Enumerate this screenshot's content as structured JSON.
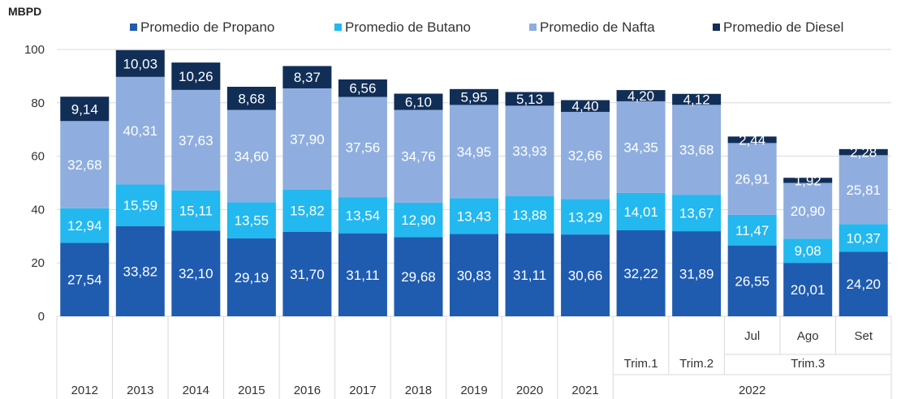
{
  "chart_data": {
    "type": "bar",
    "stacked": true,
    "ylabel": "MBPD",
    "ylim": [
      0,
      100
    ],
    "yticks": [
      0,
      20,
      40,
      60,
      80,
      100
    ],
    "grid": true,
    "legend_position": "top",
    "categories": [
      "2012",
      "2013",
      "2014",
      "2015",
      "2016",
      "2017",
      "2018",
      "2019",
      "2020",
      "2021",
      "Trim.1",
      "Trim.2",
      "Jul",
      "Ago",
      "Set"
    ],
    "group_labels": [
      {
        "label": "Trim.3",
        "from": 12,
        "to": 14,
        "level": 2
      },
      {
        "label": "2022",
        "from": 10,
        "to": 14,
        "level": 3
      }
    ],
    "series": [
      {
        "name": "Promedio de Propano",
        "color": "#1f5cb0",
        "values": [
          27.54,
          33.82,
          32.1,
          29.19,
          31.7,
          31.11,
          29.68,
          30.83,
          31.11,
          30.66,
          32.22,
          31.89,
          26.55,
          20.01,
          24.2
        ],
        "labels": [
          "27,54",
          "33,82",
          "32,10",
          "29,19",
          "31,70",
          "31,11",
          "29,68",
          "30,83",
          "31,11",
          "30,66",
          "32,22",
          "31,89",
          "26,55",
          "20,01",
          "24,20"
        ]
      },
      {
        "name": "Promedio de Butano",
        "color": "#23b8ef",
        "values": [
          12.94,
          15.59,
          15.11,
          13.55,
          15.82,
          13.54,
          12.9,
          13.43,
          13.88,
          13.29,
          14.01,
          13.67,
          11.47,
          9.08,
          10.37
        ],
        "labels": [
          "12,94",
          "15,59",
          "15,11",
          "13,55",
          "15,82",
          "13,54",
          "12,90",
          "13,43",
          "13,88",
          "13,29",
          "14,01",
          "13,67",
          "11,47",
          "9,08",
          "10,37"
        ]
      },
      {
        "name": "Promedio de Nafta",
        "color": "#8faedf",
        "values": [
          32.68,
          40.31,
          37.63,
          34.6,
          37.9,
          37.56,
          34.76,
          34.95,
          33.93,
          32.66,
          34.35,
          33.68,
          26.91,
          20.9,
          25.81
        ],
        "labels": [
          "32,68",
          "40,31",
          "37,63",
          "34,60",
          "37,90",
          "37,56",
          "34,76",
          "34,95",
          "33,93",
          "32,66",
          "34,35",
          "33,68",
          "26,91",
          "20,90",
          "25,81"
        ]
      },
      {
        "name": "Promedio de Diesel",
        "color": "#112e57",
        "values": [
          9.14,
          10.03,
          10.26,
          8.68,
          8.37,
          6.56,
          6.1,
          5.95,
          5.13,
          4.4,
          4.2,
          4.12,
          2.44,
          1.92,
          2.28
        ],
        "labels": [
          "9,14",
          "10,03",
          "10,26",
          "8,68",
          "8,37",
          "6,56",
          "6,10",
          "5,95",
          "5,13",
          "4,40",
          "4,20",
          "4,12",
          "2,44",
          "1,92",
          "2,28"
        ]
      }
    ]
  }
}
